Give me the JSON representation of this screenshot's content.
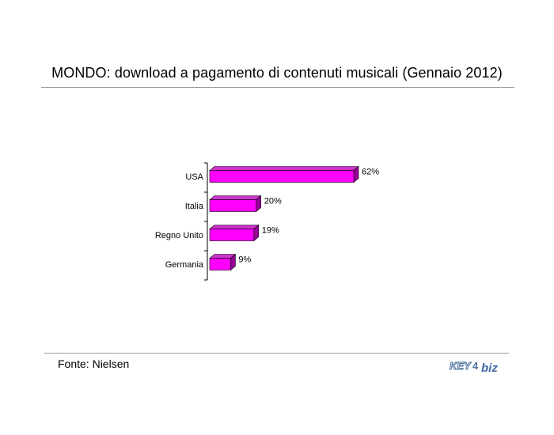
{
  "header": {
    "title": "MONDO: download a pagamento di contenuti musicali (Gennaio 2012)"
  },
  "footer": {
    "source": "Fonte: Nielsen",
    "logo_text": "KEY4biz"
  },
  "colors": {
    "bar_front": "#ff00ff",
    "bar_top": "#cc33cc",
    "bar_side": "#990099",
    "axis": "#000000"
  },
  "chart_data": {
    "type": "bar",
    "orientation": "horizontal",
    "style": "3d",
    "categories": [
      "USA",
      "Italia",
      "Regno Unito",
      "Germania"
    ],
    "values": [
      62,
      20,
      19,
      9
    ],
    "data_labels": [
      "62%",
      "20%",
      "19%",
      "9%"
    ],
    "title": "MONDO: download a pagamento di contenuti musicali (Gennaio 2012)",
    "xlabel": "",
    "ylabel": "",
    "xlim": [
      0,
      65
    ],
    "grid": false,
    "legend": "none"
  }
}
